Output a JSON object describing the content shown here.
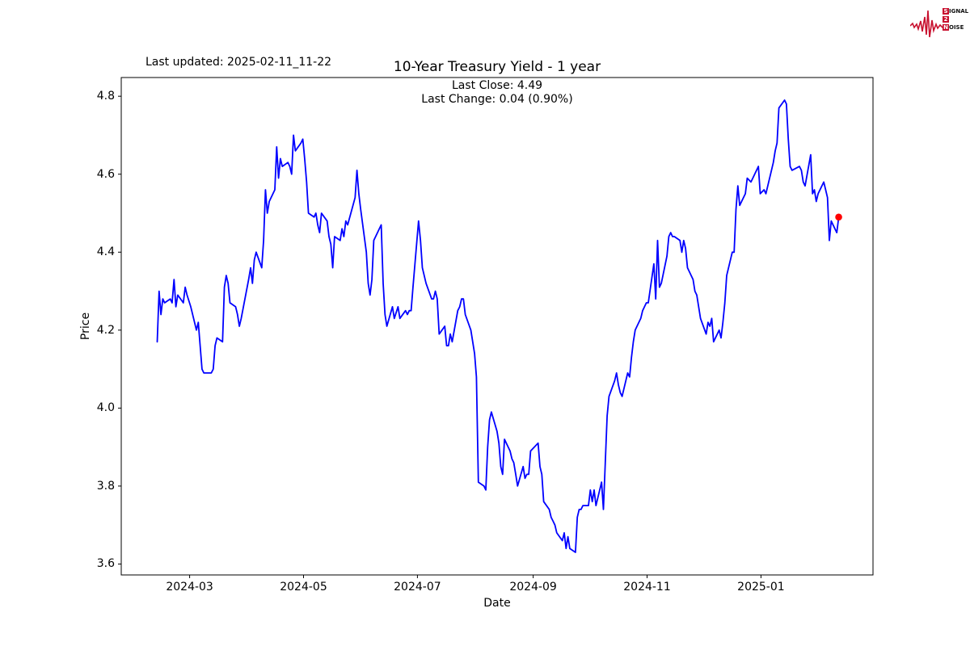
{
  "header": {
    "last_updated": "Last updated: 2025-02-11_11-22",
    "title": "10-Year Treasury Yield - 1 year",
    "subtitle_line1": "Last Close: 4.49",
    "subtitle_line2": "Last Change: 0.04 (0.90%)"
  },
  "logo": {
    "color": "#c8102e",
    "rows": [
      {
        "badge": "S",
        "rest": "IGNAL"
      },
      {
        "badge": "2",
        "rest": ""
      },
      {
        "badge": "N",
        "rest": "OISE"
      }
    ]
  },
  "chart_data": {
    "type": "line",
    "title": "10-Year Treasury Yield - 1 year",
    "xlabel": "Date",
    "ylabel": "Price",
    "legend": null,
    "grid": false,
    "line_color": "#0000ff",
    "marker_color": "#ff0000",
    "last_close": 4.49,
    "last_change": "0.04 (0.90%)",
    "ylim": [
      3.572,
      4.848
    ],
    "xlim": [
      "2024-01-24",
      "2025-03-02"
    ],
    "yticks": [
      "3.6",
      "3.8",
      "4.0",
      "4.2",
      "4.4",
      "4.6",
      "4.8"
    ],
    "xticks": [
      {
        "date": "2024-03-01",
        "label": "2024-03"
      },
      {
        "date": "2024-05-01",
        "label": "2024-05"
      },
      {
        "date": "2024-07-01",
        "label": "2024-07"
      },
      {
        "date": "2024-09-01",
        "label": "2024-09"
      },
      {
        "date": "2024-11-01",
        "label": "2024-11"
      },
      {
        "date": "2025-01-01",
        "label": "2025-01"
      }
    ],
    "series": [
      [
        "2024-02-12",
        4.17
      ],
      [
        "2024-02-13",
        4.3
      ],
      [
        "2024-02-14",
        4.24
      ],
      [
        "2024-02-15",
        4.28
      ],
      [
        "2024-02-16",
        4.27
      ],
      [
        "2024-02-19",
        4.28
      ],
      [
        "2024-02-20",
        4.27
      ],
      [
        "2024-02-21",
        4.33
      ],
      [
        "2024-02-22",
        4.26
      ],
      [
        "2024-02-23",
        4.29
      ],
      [
        "2024-02-26",
        4.27
      ],
      [
        "2024-02-27",
        4.31
      ],
      [
        "2024-02-28",
        4.29
      ],
      [
        "2024-03-01",
        4.26
      ],
      [
        "2024-03-04",
        4.2
      ],
      [
        "2024-03-05",
        4.22
      ],
      [
        "2024-03-06",
        4.16
      ],
      [
        "2024-03-07",
        4.1
      ],
      [
        "2024-03-08",
        4.09
      ],
      [
        "2024-03-11",
        4.09
      ],
      [
        "2024-03-12",
        4.09
      ],
      [
        "2024-03-13",
        4.1
      ],
      [
        "2024-03-14",
        4.16
      ],
      [
        "2024-03-15",
        4.18
      ],
      [
        "2024-03-18",
        4.17
      ],
      [
        "2024-03-19",
        4.31
      ],
      [
        "2024-03-20",
        4.34
      ],
      [
        "2024-03-21",
        4.32
      ],
      [
        "2024-03-22",
        4.27
      ],
      [
        "2024-03-25",
        4.26
      ],
      [
        "2024-03-26",
        4.24
      ],
      [
        "2024-03-27",
        4.21
      ],
      [
        "2024-03-28",
        4.23
      ],
      [
        "2024-04-01",
        4.33
      ],
      [
        "2024-04-02",
        4.36
      ],
      [
        "2024-04-03",
        4.32
      ],
      [
        "2024-04-04",
        4.38
      ],
      [
        "2024-04-05",
        4.4
      ],
      [
        "2024-04-08",
        4.36
      ],
      [
        "2024-04-09",
        4.43
      ],
      [
        "2024-04-10",
        4.56
      ],
      [
        "2024-04-11",
        4.5
      ],
      [
        "2024-04-12",
        4.53
      ],
      [
        "2024-04-15",
        4.56
      ],
      [
        "2024-04-16",
        4.67
      ],
      [
        "2024-04-17",
        4.59
      ],
      [
        "2024-04-18",
        4.64
      ],
      [
        "2024-04-19",
        4.62
      ],
      [
        "2024-04-22",
        4.63
      ],
      [
        "2024-04-23",
        4.62
      ],
      [
        "2024-04-24",
        4.6
      ],
      [
        "2024-04-25",
        4.7
      ],
      [
        "2024-04-26",
        4.66
      ],
      [
        "2024-04-29",
        4.68
      ],
      [
        "2024-04-30",
        4.69
      ],
      [
        "2024-05-01",
        4.64
      ],
      [
        "2024-05-02",
        4.58
      ],
      [
        "2024-05-03",
        4.5
      ],
      [
        "2024-05-06",
        4.49
      ],
      [
        "2024-05-07",
        4.5
      ],
      [
        "2024-05-08",
        4.47
      ],
      [
        "2024-05-09",
        4.45
      ],
      [
        "2024-05-10",
        4.5
      ],
      [
        "2024-05-13",
        4.48
      ],
      [
        "2024-05-14",
        4.44
      ],
      [
        "2024-05-15",
        4.42
      ],
      [
        "2024-05-16",
        4.36
      ],
      [
        "2024-05-17",
        4.44
      ],
      [
        "2024-05-20",
        4.43
      ],
      [
        "2024-05-21",
        4.46
      ],
      [
        "2024-05-22",
        4.44
      ],
      [
        "2024-05-23",
        4.48
      ],
      [
        "2024-05-24",
        4.47
      ],
      [
        "2024-05-28",
        4.54
      ],
      [
        "2024-05-29",
        4.61
      ],
      [
        "2024-05-30",
        4.55
      ],
      [
        "2024-05-31",
        4.51
      ],
      [
        "2024-06-03",
        4.4
      ],
      [
        "2024-06-04",
        4.32
      ],
      [
        "2024-06-05",
        4.29
      ],
      [
        "2024-06-06",
        4.33
      ],
      [
        "2024-06-07",
        4.43
      ],
      [
        "2024-06-10",
        4.46
      ],
      [
        "2024-06-11",
        4.47
      ],
      [
        "2024-06-12",
        4.32
      ],
      [
        "2024-06-13",
        4.24
      ],
      [
        "2024-06-14",
        4.21
      ],
      [
        "2024-06-17",
        4.26
      ],
      [
        "2024-06-18",
        4.23
      ],
      [
        "2024-06-20",
        4.26
      ],
      [
        "2024-06-21",
        4.23
      ],
      [
        "2024-06-24",
        4.25
      ],
      [
        "2024-06-25",
        4.24
      ],
      [
        "2024-06-26",
        4.25
      ],
      [
        "2024-06-27",
        4.25
      ],
      [
        "2024-06-28",
        4.31
      ],
      [
        "2024-07-01",
        4.48
      ],
      [
        "2024-07-02",
        4.43
      ],
      [
        "2024-07-03",
        4.36
      ],
      [
        "2024-07-05",
        4.32
      ],
      [
        "2024-07-08",
        4.28
      ],
      [
        "2024-07-09",
        4.28
      ],
      [
        "2024-07-10",
        4.3
      ],
      [
        "2024-07-11",
        4.28
      ],
      [
        "2024-07-12",
        4.19
      ],
      [
        "2024-07-15",
        4.21
      ],
      [
        "2024-07-16",
        4.16
      ],
      [
        "2024-07-17",
        4.16
      ],
      [
        "2024-07-18",
        4.19
      ],
      [
        "2024-07-19",
        4.17
      ],
      [
        "2024-07-22",
        4.25
      ],
      [
        "2024-07-23",
        4.26
      ],
      [
        "2024-07-24",
        4.28
      ],
      [
        "2024-07-25",
        4.28
      ],
      [
        "2024-07-26",
        4.24
      ],
      [
        "2024-07-29",
        4.2
      ],
      [
        "2024-07-30",
        4.17
      ],
      [
        "2024-07-31",
        4.14
      ],
      [
        "2024-08-01",
        4.08
      ],
      [
        "2024-08-02",
        3.81
      ],
      [
        "2024-08-05",
        3.8
      ],
      [
        "2024-08-06",
        3.79
      ],
      [
        "2024-08-07",
        3.9
      ],
      [
        "2024-08-08",
        3.97
      ],
      [
        "2024-08-09",
        3.99
      ],
      [
        "2024-08-12",
        3.94
      ],
      [
        "2024-08-13",
        3.91
      ],
      [
        "2024-08-14",
        3.85
      ],
      [
        "2024-08-15",
        3.83
      ],
      [
        "2024-08-16",
        3.92
      ],
      [
        "2024-08-19",
        3.89
      ],
      [
        "2024-08-20",
        3.87
      ],
      [
        "2024-08-21",
        3.86
      ],
      [
        "2024-08-22",
        3.83
      ],
      [
        "2024-08-23",
        3.8
      ],
      [
        "2024-08-26",
        3.85
      ],
      [
        "2024-08-27",
        3.82
      ],
      [
        "2024-08-28",
        3.83
      ],
      [
        "2024-08-29",
        3.83
      ],
      [
        "2024-08-30",
        3.89
      ],
      [
        "2024-09-03",
        3.91
      ],
      [
        "2024-09-04",
        3.85
      ],
      [
        "2024-09-05",
        3.83
      ],
      [
        "2024-09-06",
        3.76
      ],
      [
        "2024-09-09",
        3.74
      ],
      [
        "2024-09-10",
        3.72
      ],
      [
        "2024-09-11",
        3.71
      ],
      [
        "2024-09-12",
        3.7
      ],
      [
        "2024-09-13",
        3.68
      ],
      [
        "2024-09-16",
        3.66
      ],
      [
        "2024-09-17",
        3.68
      ],
      [
        "2024-09-18",
        3.64
      ],
      [
        "2024-09-19",
        3.67
      ],
      [
        "2024-09-20",
        3.64
      ],
      [
        "2024-09-23",
        3.63
      ],
      [
        "2024-09-24",
        3.72
      ],
      [
        "2024-09-25",
        3.74
      ],
      [
        "2024-09-26",
        3.74
      ],
      [
        "2024-09-27",
        3.75
      ],
      [
        "2024-09-30",
        3.75
      ],
      [
        "2024-10-01",
        3.79
      ],
      [
        "2024-10-02",
        3.76
      ],
      [
        "2024-10-03",
        3.79
      ],
      [
        "2024-10-04",
        3.75
      ],
      [
        "2024-10-07",
        3.81
      ],
      [
        "2024-10-08",
        3.74
      ],
      [
        "2024-10-09",
        3.86
      ],
      [
        "2024-10-10",
        3.98
      ],
      [
        "2024-10-11",
        4.03
      ],
      [
        "2024-10-14",
        4.07
      ],
      [
        "2024-10-15",
        4.09
      ],
      [
        "2024-10-16",
        4.06
      ],
      [
        "2024-10-17",
        4.04
      ],
      [
        "2024-10-18",
        4.03
      ],
      [
        "2024-10-21",
        4.09
      ],
      [
        "2024-10-22",
        4.08
      ],
      [
        "2024-10-23",
        4.13
      ],
      [
        "2024-10-24",
        4.17
      ],
      [
        "2024-10-25",
        4.2
      ],
      [
        "2024-10-28",
        4.23
      ],
      [
        "2024-10-29",
        4.25
      ],
      [
        "2024-10-30",
        4.26
      ],
      [
        "2024-10-31",
        4.27
      ],
      [
        "2024-11-01",
        4.27
      ],
      [
        "2024-11-04",
        4.37
      ],
      [
        "2024-11-05",
        4.28
      ],
      [
        "2024-11-06",
        4.43
      ],
      [
        "2024-11-07",
        4.31
      ],
      [
        "2024-11-08",
        4.32
      ],
      [
        "2024-11-11",
        4.39
      ],
      [
        "2024-11-12",
        4.44
      ],
      [
        "2024-11-13",
        4.45
      ],
      [
        "2024-11-14",
        4.44
      ],
      [
        "2024-11-15",
        4.44
      ],
      [
        "2024-11-18",
        4.43
      ],
      [
        "2024-11-19",
        4.4
      ],
      [
        "2024-11-20",
        4.43
      ],
      [
        "2024-11-21",
        4.41
      ],
      [
        "2024-11-22",
        4.36
      ],
      [
        "2024-11-25",
        4.33
      ],
      [
        "2024-11-26",
        4.3
      ],
      [
        "2024-11-27",
        4.29
      ],
      [
        "2024-11-29",
        4.23
      ],
      [
        "2024-12-02",
        4.19
      ],
      [
        "2024-12-03",
        4.22
      ],
      [
        "2024-12-04",
        4.21
      ],
      [
        "2024-12-05",
        4.23
      ],
      [
        "2024-12-06",
        4.17
      ],
      [
        "2024-12-09",
        4.2
      ],
      [
        "2024-12-10",
        4.18
      ],
      [
        "2024-12-11",
        4.22
      ],
      [
        "2024-12-12",
        4.27
      ],
      [
        "2024-12-13",
        4.34
      ],
      [
        "2024-12-16",
        4.4
      ],
      [
        "2024-12-17",
        4.4
      ],
      [
        "2024-12-18",
        4.51
      ],
      [
        "2024-12-19",
        4.57
      ],
      [
        "2024-12-20",
        4.52
      ],
      [
        "2024-12-23",
        4.55
      ],
      [
        "2024-12-24",
        4.59
      ],
      [
        "2024-12-26",
        4.58
      ],
      [
        "2024-12-27",
        4.59
      ],
      [
        "2024-12-30",
        4.62
      ],
      [
        "2024-12-31",
        4.55
      ],
      [
        "2025-01-02",
        4.56
      ],
      [
        "2025-01-03",
        4.55
      ],
      [
        "2025-01-06",
        4.61
      ],
      [
        "2025-01-07",
        4.63
      ],
      [
        "2025-01-08",
        4.66
      ],
      [
        "2025-01-09",
        4.68
      ],
      [
        "2025-01-10",
        4.77
      ],
      [
        "2025-01-13",
        4.79
      ],
      [
        "2025-01-14",
        4.78
      ],
      [
        "2025-01-15",
        4.69
      ],
      [
        "2025-01-16",
        4.62
      ],
      [
        "2025-01-17",
        4.61
      ],
      [
        "2025-01-21",
        4.62
      ],
      [
        "2025-01-22",
        4.61
      ],
      [
        "2025-01-23",
        4.58
      ],
      [
        "2025-01-24",
        4.57
      ],
      [
        "2025-01-27",
        4.65
      ],
      [
        "2025-01-28",
        4.55
      ],
      [
        "2025-01-29",
        4.56
      ],
      [
        "2025-01-30",
        4.53
      ],
      [
        "2025-01-31",
        4.55
      ],
      [
        "2025-02-03",
        4.58
      ],
      [
        "2025-02-04",
        4.56
      ],
      [
        "2025-02-05",
        4.54
      ],
      [
        "2025-02-06",
        4.43
      ],
      [
        "2025-02-07",
        4.48
      ],
      [
        "2025-02-10",
        4.45
      ],
      [
        "2025-02-11",
        4.49
      ]
    ]
  }
}
